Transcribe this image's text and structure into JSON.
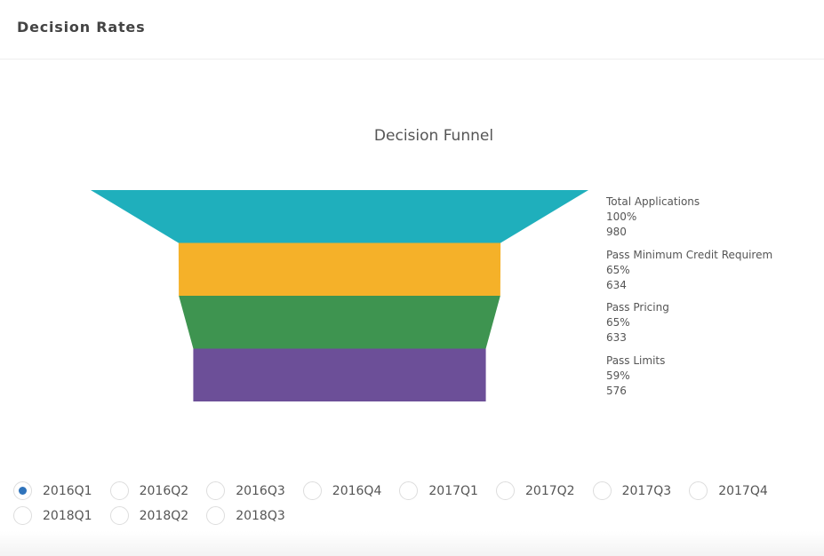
{
  "header": {
    "title": "Decision Rates"
  },
  "chart_data": {
    "type": "funnel",
    "title": "Decision Funnel",
    "stages": [
      {
        "label": "Total Applications",
        "percent": "100%",
        "value": 980,
        "color": "#1fafbc"
      },
      {
        "label": "Pass  Minimum Credit Requirem",
        "percent": "65%",
        "value": 634,
        "color": "#f5b129"
      },
      {
        "label": "Pass Pricing",
        "percent": "65%",
        "value": 633,
        "color": "#3e9450"
      },
      {
        "label": "Pass Limits",
        "percent": "59%",
        "value": 576,
        "color": "#6c4f98"
      }
    ]
  },
  "periods": {
    "selected": "2016Q1",
    "options": [
      "2016Q1",
      "2016Q2",
      "2016Q3",
      "2016Q4",
      "2017Q1",
      "2017Q2",
      "2017Q3",
      "2017Q4",
      "2018Q1",
      "2018Q2",
      "2018Q3"
    ]
  }
}
